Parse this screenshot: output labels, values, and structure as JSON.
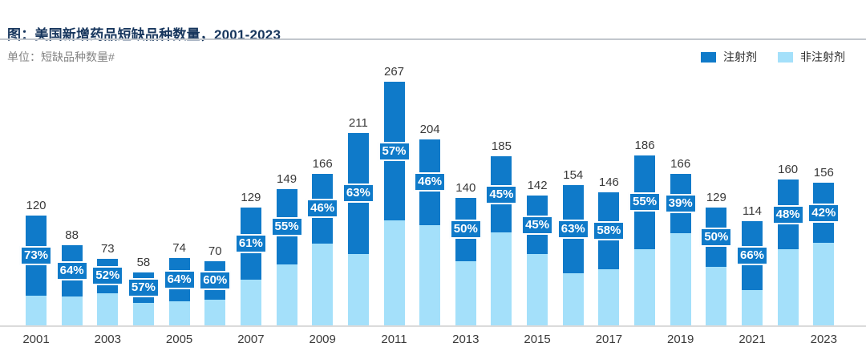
{
  "header": {
    "title": "图：美国新增药品短缺品种数量，2001-2023",
    "unit_label": "单位：短缺品种数量#"
  },
  "colors": {
    "injection_bar": "#0F7AC9",
    "non_injection_bar": "#A4E0FA",
    "title_text": "#17365D",
    "axis_line": "#DBDBDB",
    "value_text": "#3A3A3A",
    "unit_text": "#848484",
    "pct_text": "#FFFFFF"
  },
  "chart_data": {
    "type": "bar",
    "stacked": true,
    "title": "美国新增药品短缺品种数量，2001-2023",
    "unit": "短缺品种数量#",
    "categories": [
      2001,
      2002,
      2003,
      2004,
      2005,
      2006,
      2007,
      2008,
      2009,
      2010,
      2011,
      2012,
      2013,
      2014,
      2015,
      2016,
      2017,
      2018,
      2019,
      2020,
      2021,
      2022,
      2023
    ],
    "totals": [
      120,
      88,
      73,
      58,
      74,
      70,
      129,
      149,
      166,
      211,
      267,
      204,
      140,
      185,
      142,
      154,
      146,
      186,
      166,
      129,
      114,
      160,
      156
    ],
    "series": [
      {
        "name": "注射剂",
        "position": "top",
        "color": "#0F7AC9",
        "share_labels": [
          "73%",
          "64%",
          "52%",
          "57%",
          "64%",
          "60%",
          "61%",
          "55%",
          "46%",
          "63%",
          "57%",
          "46%",
          "50%",
          "45%",
          "45%",
          "63%",
          "58%",
          "55%",
          "39%",
          "50%",
          "66%",
          "48%",
          "42%"
        ]
      },
      {
        "name": "非注射剂",
        "position": "bottom",
        "color": "#A4E0FA"
      }
    ],
    "x_tick_labels": [
      "2001",
      "2003",
      "2005",
      "2007",
      "2009",
      "2011",
      "2013",
      "2015",
      "2017",
      "2019",
      "2021",
      "2023"
    ],
    "value_labels": "total above each bar; 注射剂 share % inside dark segment",
    "legend_position": "top-right",
    "gridlines": false,
    "y_axis": "hidden"
  }
}
